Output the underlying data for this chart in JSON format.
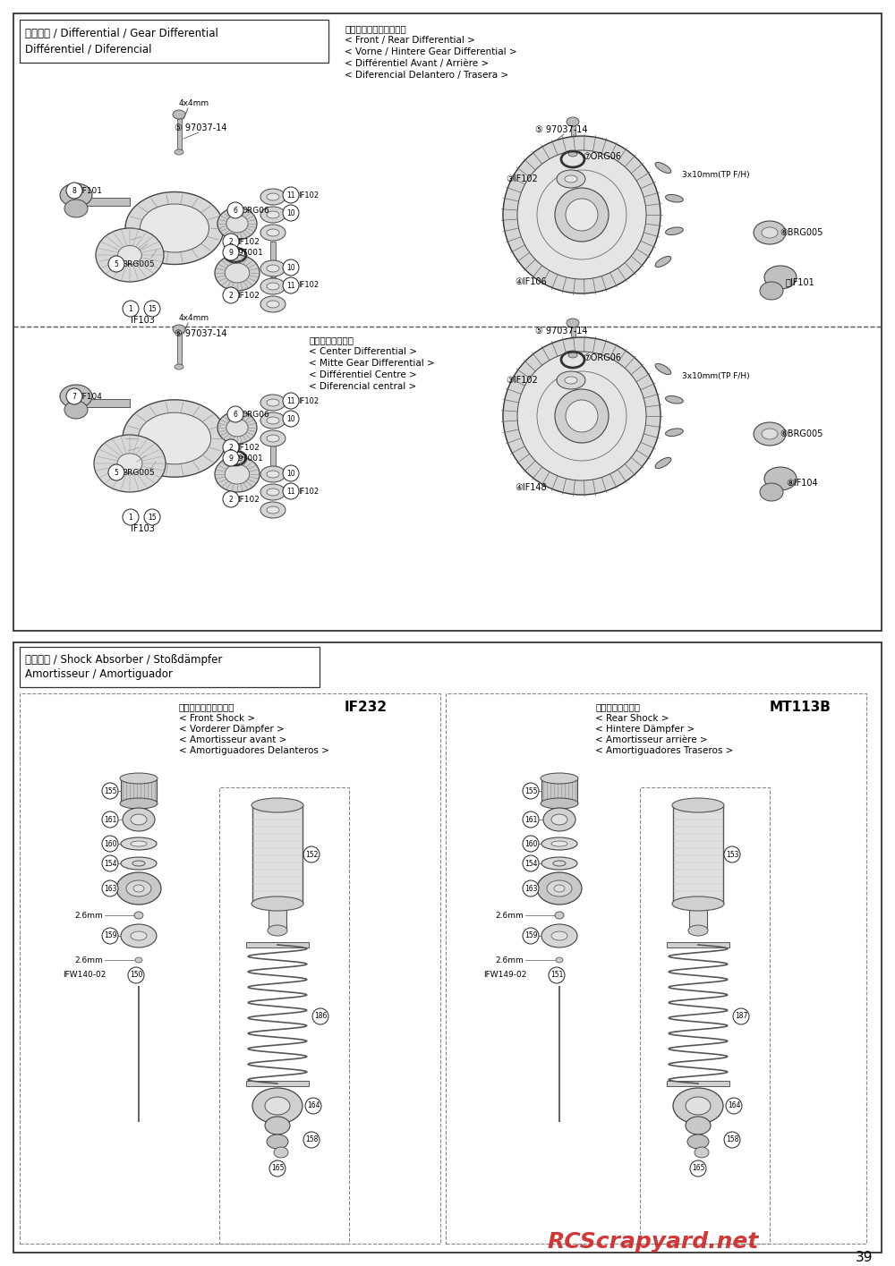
{
  "page_num": "39",
  "bg_color": "#ffffff",
  "watermark_text": "RCScrapyard.net",
  "watermark_color": "#cc2222",
  "sec1_title_line1": "デフギヤ / Differential / Gear Differential",
  "sec1_title_line2": "Différentiel / Diferencial",
  "sec1_right": [
    "＜フロント／リヤデフ＞",
    "< Front / Rear Differential >",
    "< Vorne / Hintere Gear Differential >",
    "< Différentiel Avant / Arrière >",
    "< Diferencial Delantero / Trasera >"
  ],
  "sec2_right": [
    "＜センターデフ＞",
    "< Center Differential >",
    "< Mitte Gear Differential >",
    "< Différentiel Centre >",
    "< Diferencial central >"
  ],
  "sec3_title_line1": "ダンパー / Shock Absorber / Stoßdämpfer",
  "sec3_title_line2": "Amortisseur / Amortiguador",
  "front_shock_header": [
    "＜フロントダンパー＞",
    "< Front Shock >",
    "< Vorderer Dämpfer >",
    "< Amortisseur avant >",
    "< Amortiguadores Delanteros >"
  ],
  "front_shock_code": "IF232",
  "rear_shock_header": [
    "＜リヤダンパー＞",
    "< Rear Shock >",
    "< Hintere Dämpfer >",
    "< Amortisseur arrière >",
    "< Amortiguadores Traseros >"
  ],
  "rear_shock_code": "MT113B"
}
